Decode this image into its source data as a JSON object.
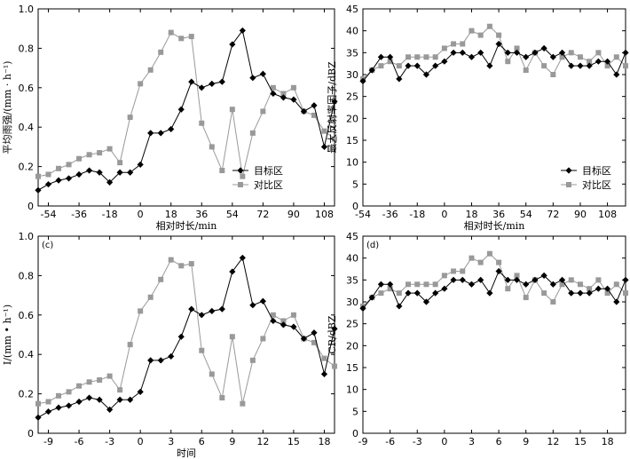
{
  "figure": {
    "legend_labels": [
      "目标区",
      "对比区"
    ],
    "series_colors": {
      "目标区": "#000000",
      "对比区": "#999999"
    }
  },
  "chart_data": [
    {
      "type": "line",
      "panel_tag": "",
      "xlabel": "相对时长/min",
      "ylabel": "平均雨强/(mm · h⁻¹)",
      "xlim": [
        -60,
        114
      ],
      "ylim": [
        0,
        1.0
      ],
      "xticks": [
        -54,
        -36,
        -18,
        0,
        18,
        36,
        54,
        72,
        90,
        108
      ],
      "yticks": [
        0,
        0.2,
        0.4,
        0.6,
        0.8,
        1.0
      ],
      "ytick_labels": [
        "0",
        "0.2",
        "0.4",
        "0.6",
        "0.8",
        "1.0"
      ],
      "legend": "center-right",
      "x": [
        -60,
        -54,
        -48,
        -42,
        -36,
        -30,
        -24,
        -18,
        -12,
        -6,
        0,
        6,
        12,
        18,
        24,
        30,
        36,
        42,
        48,
        54,
        60,
        66,
        72,
        78,
        84,
        90,
        96,
        102,
        108,
        114
      ],
      "series": [
        {
          "name": "目标区",
          "marker": "diamond",
          "values": [
            0.08,
            0.11,
            0.13,
            0.14,
            0.16,
            0.18,
            0.17,
            0.12,
            0.17,
            0.17,
            0.21,
            0.37,
            0.37,
            0.39,
            0.49,
            0.63,
            0.6,
            0.62,
            0.63,
            0.82,
            0.89,
            0.65,
            0.67,
            0.57,
            0.55,
            0.54,
            0.48,
            0.51,
            0.3,
            0.53
          ]
        },
        {
          "name": "对比区",
          "marker": "square",
          "values": [
            0.15,
            0.16,
            0.19,
            0.21,
            0.24,
            0.26,
            0.27,
            0.29,
            0.22,
            0.45,
            0.62,
            0.69,
            0.78,
            0.88,
            0.85,
            0.86,
            0.42,
            0.3,
            0.18,
            0.49,
            0.15,
            0.37,
            0.48,
            0.6,
            0.57,
            0.6,
            0.48,
            0.46,
            0.38,
            0.34
          ]
        }
      ]
    },
    {
      "type": "line",
      "panel_tag": "",
      "xlabel": "相对时长/min",
      "ylabel": "最大反射率因子/dBZ",
      "xlim": [
        -54,
        120
      ],
      "ylim": [
        0,
        45
      ],
      "xticks": [
        -54,
        -36,
        -18,
        0,
        18,
        36,
        54,
        72,
        90,
        108
      ],
      "yticks": [
        0,
        5,
        10,
        15,
        20,
        25,
        30,
        35,
        40,
        45
      ],
      "ytick_labels": [
        "0",
        "5",
        "10",
        "15",
        "20",
        "25",
        "30",
        "35",
        "40",
        "45"
      ],
      "legend": "bottom-right",
      "x": [
        -54,
        -48,
        -42,
        -36,
        -30,
        -24,
        -18,
        -12,
        -6,
        0,
        6,
        12,
        18,
        24,
        30,
        36,
        42,
        48,
        54,
        60,
        66,
        72,
        78,
        84,
        90,
        96,
        102,
        108,
        114,
        120
      ],
      "series": [
        {
          "name": "目标区",
          "marker": "diamond",
          "values": [
            28.5,
            31,
            34,
            34,
            29,
            32,
            32,
            30,
            32,
            33,
            35,
            35,
            34,
            35,
            32,
            37,
            35,
            35,
            34,
            35,
            36,
            34,
            35,
            32,
            32,
            32,
            33,
            33,
            30,
            35
          ]
        },
        {
          "name": "对比区",
          "marker": "square",
          "values": [
            29,
            31,
            32,
            33,
            32,
            34,
            34,
            34,
            34,
            36,
            37,
            37,
            40,
            39,
            41,
            39,
            33,
            36,
            31,
            35,
            32,
            30,
            34,
            35,
            34,
            33,
            35,
            32,
            34,
            32
          ]
        }
      ]
    },
    {
      "type": "line",
      "panel_tag": "(c)",
      "xlabel": "时间",
      "ylabel": "I/(mm • h⁻¹)",
      "xlim": [
        -10,
        19
      ],
      "ylim": [
        0,
        1.0
      ],
      "xticks": [
        -9,
        -6,
        -3,
        0,
        3,
        6,
        9,
        12,
        15,
        18
      ],
      "yticks": [
        0,
        0.2,
        0.4,
        0.6,
        0.8,
        1.0
      ],
      "ytick_labels": [
        "0",
        "0.2",
        "0.4",
        "0.6",
        "0.8",
        "1.0"
      ],
      "legend": "",
      "x": [
        -10,
        -9,
        -8,
        -7,
        -6,
        -5,
        -4,
        -3,
        -2,
        -1,
        0,
        1,
        2,
        3,
        4,
        5,
        6,
        7,
        8,
        9,
        10,
        11,
        12,
        13,
        14,
        15,
        16,
        17,
        18,
        19
      ],
      "series": [
        {
          "name": "目标区",
          "marker": "diamond",
          "values": [
            0.08,
            0.11,
            0.13,
            0.14,
            0.16,
            0.18,
            0.17,
            0.12,
            0.17,
            0.17,
            0.21,
            0.37,
            0.37,
            0.39,
            0.49,
            0.63,
            0.6,
            0.62,
            0.63,
            0.82,
            0.89,
            0.65,
            0.67,
            0.57,
            0.55,
            0.54,
            0.48,
            0.51,
            0.3,
            0.53
          ]
        },
        {
          "name": "对比区",
          "marker": "square",
          "values": [
            0.15,
            0.16,
            0.19,
            0.21,
            0.24,
            0.26,
            0.27,
            0.29,
            0.22,
            0.45,
            0.62,
            0.69,
            0.78,
            0.88,
            0.85,
            0.86,
            0.42,
            0.3,
            0.18,
            0.49,
            0.15,
            0.37,
            0.48,
            0.6,
            0.57,
            0.6,
            0.48,
            0.46,
            0.38,
            0.34
          ]
        }
      ]
    },
    {
      "type": "line",
      "panel_tag": "(d)",
      "xlabel": "",
      "ylabel": "CR/dBZ",
      "xlim": [
        -9,
        20
      ],
      "ylim": [
        0,
        45
      ],
      "xticks": [
        -9,
        -6,
        -3,
        0,
        3,
        6,
        9,
        12,
        15,
        18
      ],
      "yticks": [
        0,
        5,
        10,
        15,
        20,
        25,
        30,
        35,
        40,
        45
      ],
      "ytick_labels": [
        "0",
        "5",
        "10",
        "15",
        "20",
        "25",
        "30",
        "35",
        "40",
        "45"
      ],
      "legend": "",
      "x": [
        -9,
        -8,
        -7,
        -6,
        -5,
        -4,
        -3,
        -2,
        -1,
        0,
        1,
        2,
        3,
        4,
        5,
        6,
        7,
        8,
        9,
        10,
        11,
        12,
        13,
        14,
        15,
        16,
        17,
        18,
        19,
        20
      ],
      "series": [
        {
          "name": "目标区",
          "marker": "diamond",
          "values": [
            28.5,
            31,
            34,
            34,
            29,
            32,
            32,
            30,
            32,
            33,
            35,
            35,
            34,
            35,
            32,
            37,
            35,
            35,
            34,
            35,
            36,
            34,
            35,
            32,
            32,
            32,
            33,
            33,
            30,
            35
          ]
        },
        {
          "name": "对比区",
          "marker": "square",
          "values": [
            29,
            31,
            32,
            33,
            32,
            34,
            34,
            34,
            34,
            36,
            37,
            37,
            40,
            39,
            41,
            39,
            33,
            36,
            31,
            35,
            32,
            30,
            34,
            35,
            34,
            33,
            35,
            32,
            34,
            32
          ]
        }
      ]
    }
  ]
}
